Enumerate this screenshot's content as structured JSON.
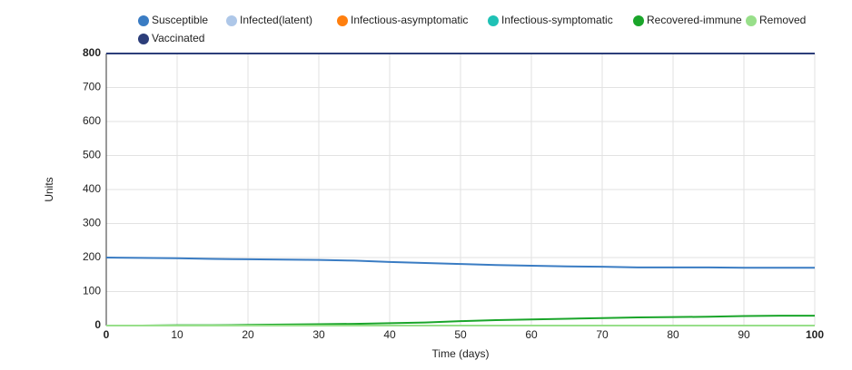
{
  "chart_data": {
    "type": "line",
    "x_label": "Time (days)",
    "y_label": "Units",
    "x": [
      0,
      5,
      10,
      15,
      20,
      25,
      30,
      35,
      40,
      45,
      50,
      55,
      60,
      65,
      70,
      75,
      80,
      85,
      90,
      95,
      100
    ],
    "xlim": [
      0,
      100
    ],
    "xticks": [
      0,
      10,
      20,
      30,
      40,
      50,
      60,
      70,
      80,
      90,
      100
    ],
    "ylim": [
      0,
      800
    ],
    "yticks": [
      0,
      100,
      200,
      300,
      400,
      500,
      600,
      700,
      800
    ],
    "grid": true,
    "series": [
      {
        "name": "Susceptible",
        "color": "#3a7cc3",
        "values": [
          200,
          199,
          198,
          196,
          195,
          194,
          193,
          191,
          187,
          184,
          181,
          178,
          176,
          174,
          173,
          171,
          171,
          171,
          170,
          170,
          170
        ]
      },
      {
        "name": "Infected(latent)",
        "color": "#aec7e8",
        "values": [
          0,
          0,
          0,
          0,
          0,
          0,
          0,
          0,
          0,
          0,
          0,
          0,
          0,
          0,
          0,
          0,
          0,
          0,
          0,
          0,
          0
        ]
      },
      {
        "name": "Infectious-asymptomatic",
        "color": "#ff7f0e",
        "values": [
          0,
          0,
          0,
          0,
          0,
          0,
          0,
          0,
          0,
          0,
          0,
          0,
          0,
          0,
          0,
          0,
          0,
          0,
          0,
          0,
          0
        ]
      },
      {
        "name": "Infectious-symptomatic",
        "color": "#1fc1b5",
        "values": [
          0,
          0,
          0,
          0,
          0,
          0,
          0,
          0,
          0,
          0,
          0,
          0,
          0,
          0,
          0,
          0,
          0,
          0,
          0,
          0,
          0
        ]
      },
      {
        "name": "Recovered-immune",
        "color": "#1aa52a",
        "values": [
          0,
          0,
          1,
          1,
          2,
          3,
          4,
          5,
          7,
          9,
          13,
          16,
          18,
          20,
          22,
          24,
          25,
          26,
          28,
          29,
          29
        ]
      },
      {
        "name": "Removed",
        "color": "#98df8a",
        "values": [
          0,
          0,
          0,
          0,
          0,
          0,
          0,
          0,
          0,
          0,
          0,
          0,
          0,
          0,
          0,
          0,
          0,
          0,
          0,
          0,
          0
        ]
      },
      {
        "name": "Vaccinated",
        "color": "#2c3e7a",
        "values": [
          800,
          800,
          800,
          800,
          800,
          800,
          800,
          800,
          800,
          800,
          800,
          800,
          800,
          800,
          800,
          800,
          800,
          800,
          800,
          800,
          800
        ]
      }
    ]
  }
}
